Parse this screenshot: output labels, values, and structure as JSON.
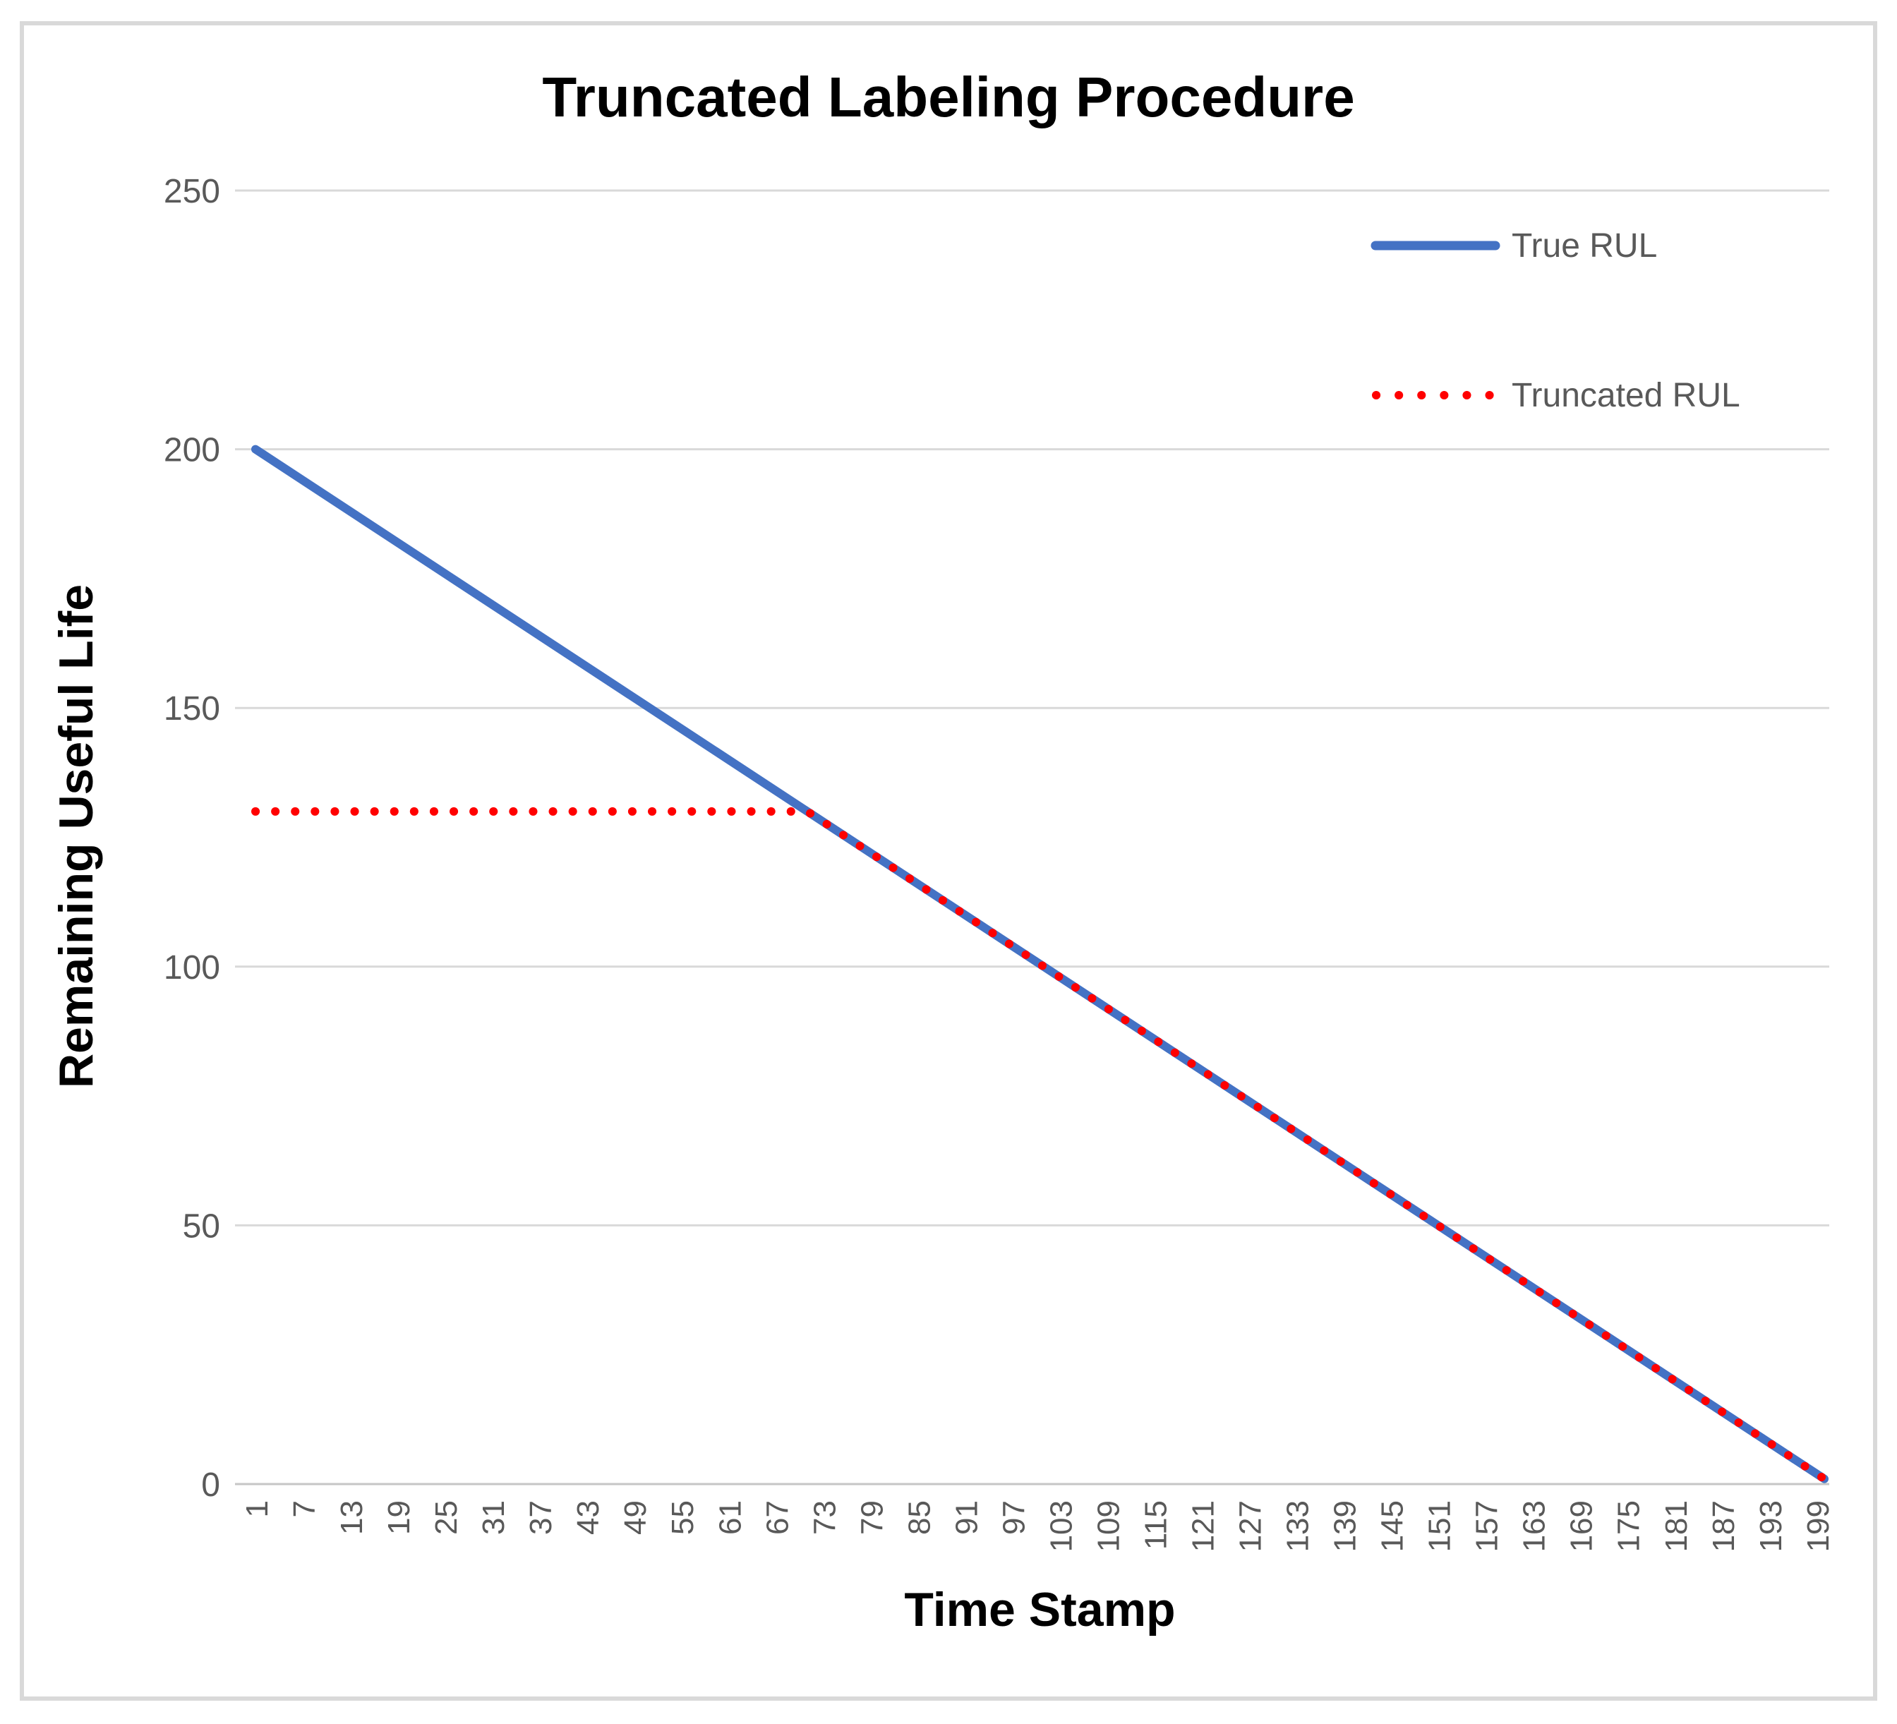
{
  "chart_data": {
    "type": "line",
    "title": "Truncated Labeling Procedure",
    "xlabel": "Time Stamp",
    "ylabel": "Remaining Useful Life",
    "xlim": [
      1,
      200
    ],
    "ylim": [
      0,
      250
    ],
    "yticks": [
      0,
      50,
      100,
      150,
      200,
      250
    ],
    "xtick_values": [
      1,
      7,
      13,
      19,
      25,
      31,
      37,
      43,
      49,
      55,
      61,
      67,
      73,
      79,
      85,
      91,
      97,
      103,
      109,
      115,
      121,
      127,
      133,
      139,
      145,
      151,
      157,
      163,
      169,
      175,
      181,
      187,
      193,
      199
    ],
    "grid": true,
    "legend_position": "top-right",
    "colors": {
      "true_rul": "#4472C4",
      "truncated_rul": "#FF0000",
      "gridline": "#D9D9D9",
      "axis_text": "#595959",
      "title_text": "#000000"
    },
    "series": [
      {
        "name": "True RUL",
        "style": "solid",
        "color": "#4472C4",
        "points": [
          [
            1,
            200
          ],
          [
            200,
            1
          ]
        ]
      },
      {
        "name": "Truncated RUL",
        "style": "dotted",
        "color": "#FF0000",
        "truncation_value": 130,
        "points": [
          [
            1,
            130
          ],
          [
            71,
            130
          ],
          [
            200,
            1
          ]
        ]
      }
    ]
  }
}
